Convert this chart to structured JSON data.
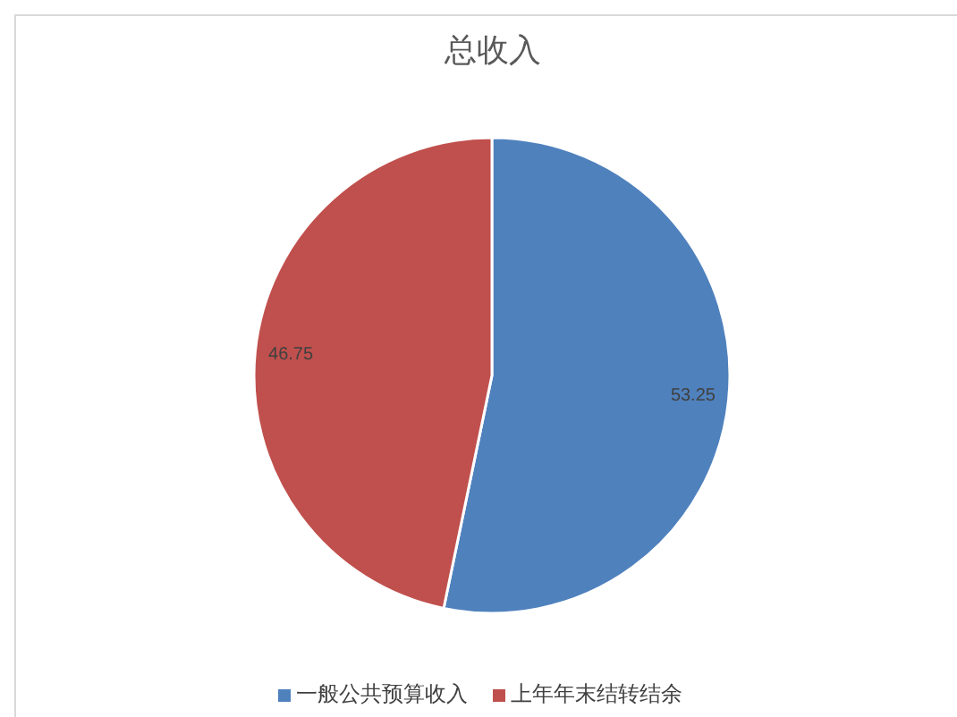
{
  "chart_data": {
    "type": "pie",
    "title": "总收入",
    "categories": [
      "一般公共预算收入",
      "上年年末结转结余"
    ],
    "values": [
      53.25,
      46.75
    ],
    "colors": [
      "#4f81bd",
      "#c0504d"
    ],
    "data_labels": true,
    "legend": "bottom"
  }
}
